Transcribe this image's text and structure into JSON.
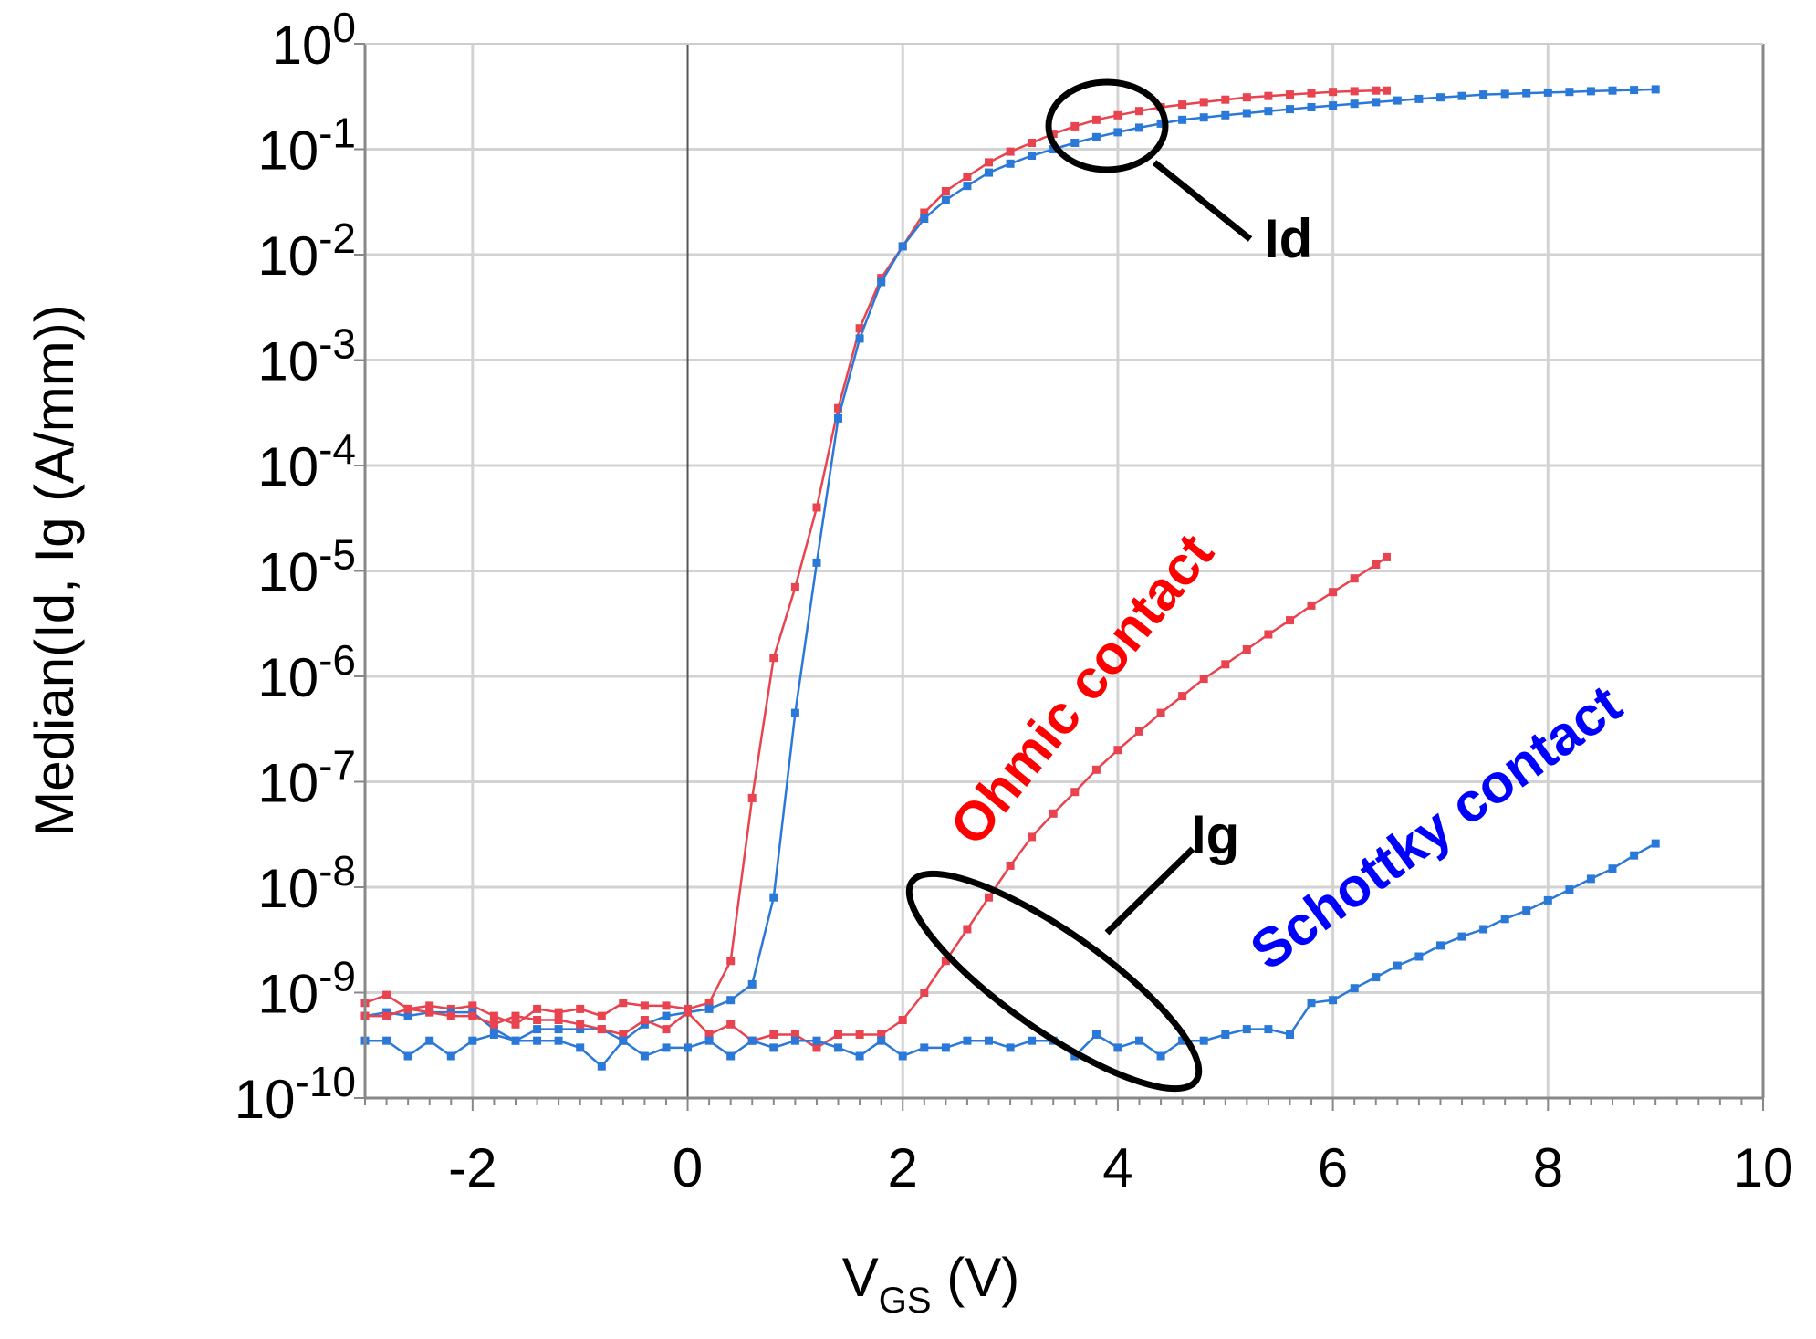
{
  "chart_data": {
    "type": "line",
    "xlabel": {
      "main": "V",
      "sub": "GS",
      "unit": " (V)"
    },
    "ylabel": "Median(Id, Ig (A/mm))",
    "xlim": [
      -3,
      10
    ],
    "ylim_log10": [
      -10,
      0
    ],
    "x_ticks": [
      -2,
      0,
      2,
      4,
      6,
      8,
      10
    ],
    "x_tick_labels": [
      "-2",
      "0",
      "2",
      "4",
      "6",
      "8",
      "10"
    ],
    "y_ticks": [
      {
        "base": "10",
        "exp": "0"
      },
      {
        "base": "10",
        "exp": "-1"
      },
      {
        "base": "10",
        "exp": "-2"
      },
      {
        "base": "10",
        "exp": "-3"
      },
      {
        "base": "10",
        "exp": "-4"
      },
      {
        "base": "10",
        "exp": "-5"
      },
      {
        "base": "10",
        "exp": "-6"
      },
      {
        "base": "10",
        "exp": "-7"
      },
      {
        "base": "10",
        "exp": "-8"
      },
      {
        "base": "10",
        "exp": "-9"
      },
      {
        "base": "10",
        "exp": "-10"
      }
    ],
    "grid": true,
    "colors": {
      "ohmic": "#e8434e",
      "schottky": "#2a78d8",
      "ohmic_label": "#ff0000",
      "schottky_label": "#0000ff"
    },
    "annotations": {
      "id_label": "Id",
      "ig_label": "Ig",
      "ohmic_label": "Ohmic contact",
      "schottky_label": "Schottky contact"
    },
    "series": [
      {
        "name": "Ohmic Id",
        "color": "#e8434e",
        "x": [
          -3,
          -2.8,
          -2.6,
          -2.4,
          -2.2,
          -2.0,
          -1.8,
          -1.6,
          -1.4,
          -1.2,
          -1.0,
          -0.8,
          -0.6,
          -0.4,
          -0.2,
          0,
          0.2,
          0.4,
          0.6,
          0.8,
          1.0,
          1.2,
          1.4,
          1.6,
          1.8,
          2.0,
          2.2,
          2.4,
          2.6,
          2.8,
          3.0,
          3.2,
          3.4,
          3.6,
          3.8,
          4.0,
          4.2,
          4.4,
          4.6,
          4.8,
          5.0,
          5.2,
          5.4,
          5.6,
          5.8,
          6.0,
          6.2,
          6.4,
          6.5
        ],
        "y": [
          8e-10,
          9.5e-10,
          7e-10,
          7.5e-10,
          7e-10,
          7.5e-10,
          6e-10,
          5e-10,
          7e-10,
          6.5e-10,
          7e-10,
          6e-10,
          8e-10,
          7.5e-10,
          7.5e-10,
          7e-10,
          8e-10,
          2e-09,
          7e-08,
          1.5e-06,
          7e-06,
          4e-05,
          0.00035,
          0.002,
          0.006,
          0.012,
          0.025,
          0.04,
          0.055,
          0.075,
          0.095,
          0.115,
          0.14,
          0.165,
          0.19,
          0.21,
          0.23,
          0.25,
          0.265,
          0.28,
          0.295,
          0.31,
          0.32,
          0.33,
          0.34,
          0.35,
          0.355,
          0.36,
          0.36
        ]
      },
      {
        "name": "Schottky Id",
        "color": "#2a78d8",
        "x": [
          -3,
          -2.8,
          -2.6,
          -2.4,
          -2.2,
          -2.0,
          -1.8,
          -1.6,
          -1.4,
          -1.2,
          -1.0,
          -0.8,
          -0.6,
          -0.4,
          -0.2,
          0,
          0.2,
          0.4,
          0.6,
          0.8,
          1.0,
          1.2,
          1.4,
          1.6,
          1.8,
          2.0,
          2.2,
          2.4,
          2.6,
          2.8,
          3.0,
          3.2,
          3.4,
          3.6,
          3.8,
          4.0,
          4.2,
          4.4,
          4.6,
          4.8,
          5.0,
          5.2,
          5.4,
          5.6,
          5.8,
          6.0,
          6.2,
          6.4,
          6.6,
          6.8,
          7.0,
          7.2,
          7.4,
          7.6,
          7.8,
          8.0,
          8.2,
          8.4,
          8.6,
          8.8,
          9.0
        ],
        "y": [
          6e-10,
          6.5e-10,
          6e-10,
          6.5e-10,
          6.5e-10,
          6.5e-10,
          4.5e-10,
          3.5e-10,
          4.5e-10,
          4.5e-10,
          4.5e-10,
          4.5e-10,
          3.5e-10,
          5e-10,
          6e-10,
          6.5e-10,
          7e-10,
          8.5e-10,
          1.2e-09,
          8e-09,
          4.5e-07,
          1.2e-05,
          0.00028,
          0.0016,
          0.0055,
          0.012,
          0.022,
          0.033,
          0.045,
          0.06,
          0.073,
          0.087,
          0.1,
          0.115,
          0.13,
          0.145,
          0.16,
          0.175,
          0.19,
          0.2,
          0.21,
          0.22,
          0.23,
          0.24,
          0.25,
          0.26,
          0.27,
          0.28,
          0.29,
          0.3,
          0.31,
          0.32,
          0.33,
          0.335,
          0.34,
          0.345,
          0.35,
          0.355,
          0.36,
          0.365,
          0.37
        ]
      },
      {
        "name": "Ohmic Ig",
        "color": "#e8434e",
        "x": [
          -3,
          -2.8,
          -2.6,
          -2.4,
          -2.2,
          -2.0,
          -1.8,
          -1.6,
          -1.4,
          -1.2,
          -1.0,
          -0.8,
          -0.6,
          -0.4,
          -0.2,
          0,
          0.2,
          0.4,
          0.6,
          0.8,
          1.0,
          1.2,
          1.4,
          1.6,
          1.8,
          2.0,
          2.2,
          2.4,
          2.6,
          2.8,
          3.0,
          3.2,
          3.4,
          3.6,
          3.8,
          4.0,
          4.2,
          4.4,
          4.6,
          4.8,
          5.0,
          5.2,
          5.4,
          5.6,
          5.8,
          6.0,
          6.2,
          6.4,
          6.5
        ],
        "y": [
          6e-10,
          6e-10,
          7e-10,
          6.5e-10,
          6e-10,
          6e-10,
          5e-10,
          6e-10,
          5.5e-10,
          5.5e-10,
          5e-10,
          4.5e-10,
          4e-10,
          5.5e-10,
          4.5e-10,
          6.5e-10,
          4e-10,
          5e-10,
          3.5e-10,
          4e-10,
          4e-10,
          3e-10,
          4e-10,
          4e-10,
          4e-10,
          5.5e-10,
          1e-09,
          2e-09,
          4e-09,
          8e-09,
          1.6e-08,
          3e-08,
          5e-08,
          8e-08,
          1.3e-07,
          2e-07,
          3e-07,
          4.5e-07,
          6.5e-07,
          9.5e-07,
          1.3e-06,
          1.8e-06,
          2.5e-06,
          3.4e-06,
          4.7e-06,
          6.3e-06,
          8.5e-06,
          1.15e-05,
          1.35e-05
        ]
      },
      {
        "name": "Schottky Ig",
        "color": "#2a78d8",
        "x": [
          -3,
          -2.8,
          -2.6,
          -2.4,
          -2.2,
          -2.0,
          -1.8,
          -1.6,
          -1.4,
          -1.2,
          -1.0,
          -0.8,
          -0.6,
          -0.4,
          -0.2,
          0,
          0.2,
          0.4,
          0.6,
          0.8,
          1.0,
          1.2,
          1.4,
          1.6,
          1.8,
          2.0,
          2.2,
          2.4,
          2.6,
          2.8,
          3.0,
          3.2,
          3.4,
          3.6,
          3.8,
          4.0,
          4.2,
          4.4,
          4.6,
          4.8,
          5.0,
          5.2,
          5.4,
          5.6,
          5.8,
          6.0,
          6.2,
          6.4,
          6.6,
          6.8,
          7.0,
          7.2,
          7.4,
          7.6,
          7.8,
          8.0,
          8.2,
          8.4,
          8.6,
          8.8,
          9.0
        ],
        "y": [
          3.5e-10,
          3.5e-10,
          2.5e-10,
          3.5e-10,
          2.5e-10,
          3.5e-10,
          4e-10,
          3.5e-10,
          3.5e-10,
          3.5e-10,
          3e-10,
          2e-10,
          3.5e-10,
          2.5e-10,
          3e-10,
          3e-10,
          3.5e-10,
          2.5e-10,
          3.5e-10,
          3e-10,
          3.5e-10,
          3.5e-10,
          3e-10,
          2.5e-10,
          3.5e-10,
          2.5e-10,
          3e-10,
          3e-10,
          3.5e-10,
          3.5e-10,
          3e-10,
          3.5e-10,
          3.5e-10,
          2.5e-10,
          4e-10,
          3e-10,
          3.5e-10,
          2.5e-10,
          3.5e-10,
          3.5e-10,
          4e-10,
          4.5e-10,
          4.5e-10,
          4e-10,
          8e-10,
          8.5e-10,
          1.1e-09,
          1.4e-09,
          1.8e-09,
          2.2e-09,
          2.8e-09,
          3.4e-09,
          4e-09,
          5e-09,
          6e-09,
          7.5e-09,
          9.5e-09,
          1.2e-08,
          1.5e-08,
          2e-08,
          2.6e-08
        ]
      }
    ]
  }
}
